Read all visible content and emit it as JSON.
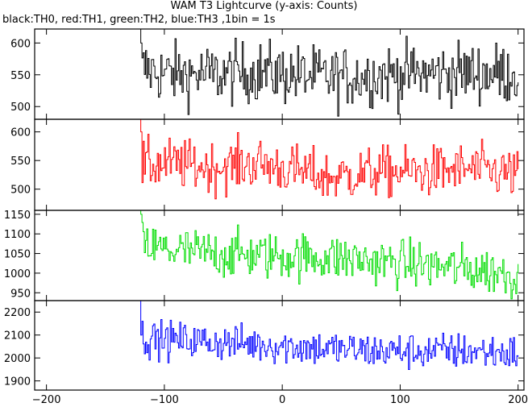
{
  "chart_data": {
    "type": "line",
    "title": "WAM T3 Lightcurve (y-axis: Counts)",
    "subtitle": "black:TH0, red:TH1, green:TH2, blue:TH3 ,1bin = 1s",
    "xlim": [
      -210,
      205
    ],
    "x_ticks": [
      -200,
      -100,
      0,
      100,
      200
    ],
    "x_start": -120,
    "x_end": 200,
    "bin_seconds": 1,
    "grid": false,
    "panels": [
      {
        "name": "TH0",
        "color": "#000000",
        "ylim": [
          480,
          622
        ],
        "yticks": [
          500,
          550,
          600
        ],
        "trend": [
          [
            -120,
            560
          ],
          [
            -100,
            552
          ],
          [
            -60,
            550
          ],
          [
            -20,
            555
          ],
          [
            40,
            545
          ],
          [
            80,
            550
          ],
          [
            120,
            552
          ],
          [
            160,
            553
          ],
          [
            200,
            552
          ]
        ],
        "noise": 24,
        "first": 600
      },
      {
        "name": "TH1",
        "color": "#ff0000",
        "ylim": [
          463,
          622
        ],
        "yticks": [
          500,
          550,
          600
        ],
        "trend": [
          [
            -120,
            540
          ],
          [
            -100,
            545
          ],
          [
            -60,
            538
          ],
          [
            -20,
            545
          ],
          [
            40,
            520
          ],
          [
            80,
            530
          ],
          [
            120,
            530
          ],
          [
            160,
            535
          ],
          [
            200,
            525
          ]
        ],
        "noise": 22,
        "first": 600
      },
      {
        "name": "TH2",
        "color": "#00dd00",
        "ylim": [
          930,
          1160
        ],
        "yticks": [
          950,
          1000,
          1050,
          1100,
          1150
        ],
        "trend": [
          [
            -120,
            1070
          ],
          [
            -100,
            1060
          ],
          [
            -60,
            1050
          ],
          [
            -20,
            1045
          ],
          [
            40,
            1040
          ],
          [
            80,
            1030
          ],
          [
            120,
            1020
          ],
          [
            160,
            1010
          ],
          [
            190,
            1000
          ],
          [
            200,
            985
          ]
        ],
        "noise": 30,
        "first": 1150
      },
      {
        "name": "TH3",
        "color": "#0000ff",
        "ylim": [
          1860,
          2250
        ],
        "yticks": [
          1900,
          2000,
          2100,
          2200
        ],
        "trend": [
          [
            -120,
            2090
          ],
          [
            -100,
            2080
          ],
          [
            -60,
            2070
          ],
          [
            -20,
            2060
          ],
          [
            40,
            2040
          ],
          [
            80,
            2030
          ],
          [
            120,
            2030
          ],
          [
            160,
            2030
          ],
          [
            200,
            2020
          ]
        ],
        "noise": 40,
        "first": 2100
      }
    ]
  }
}
